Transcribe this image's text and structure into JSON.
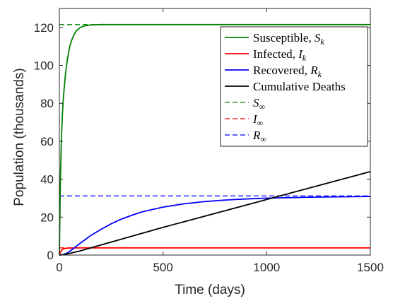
{
  "chart_data": {
    "type": "line",
    "xlabel": "Time (days)",
    "ylabel": "Population (thousands)",
    "xlim": [
      0,
      1500
    ],
    "ylim": [
      0,
      130
    ],
    "xticks": [
      0,
      500,
      1000,
      1500
    ],
    "yticks": [
      0,
      20,
      40,
      60,
      80,
      100,
      120
    ],
    "grid": false,
    "legend_position": "top-right",
    "series": [
      {
        "name": "Susceptible, S_k",
        "label_main": "Susceptible,",
        "label_math": "S",
        "label_sub": "k",
        "color": "#008000",
        "dash": false,
        "x": [
          0,
          5,
          10,
          15,
          20,
          30,
          40,
          50,
          60,
          70,
          80,
          100,
          120,
          150,
          200,
          300,
          500,
          1000,
          1500
        ],
        "y": [
          0,
          40,
          62,
          75,
          84,
          96,
          104,
          110,
          113.5,
          116,
          118,
          120,
          120.8,
          121.3,
          121.5,
          121.5,
          121.5,
          121.5,
          121.5
        ]
      },
      {
        "name": "Infected, I_k",
        "label_main": "Infected,",
        "label_math": "I",
        "label_sub": "k",
        "color": "#ff0000",
        "dash": false,
        "x": [
          0,
          5,
          10,
          20,
          40,
          100,
          500,
          1000,
          1500
        ],
        "y": [
          0,
          1.5,
          2.5,
          3.3,
          3.7,
          3.8,
          3.8,
          3.8,
          3.8
        ]
      },
      {
        "name": "Recovered, R_k",
        "label_main": "Recovered,",
        "label_math": "R",
        "label_sub": "k",
        "color": "#0000ff",
        "dash": false,
        "x": [
          0,
          20,
          40,
          60,
          80,
          100,
          150,
          200,
          250,
          300,
          350,
          400,
          500,
          600,
          700,
          800,
          900,
          1000,
          1200,
          1500
        ],
        "y": [
          0,
          0.3,
          1.2,
          2.8,
          4.5,
          6.2,
          10.2,
          13.5,
          16.5,
          19.0,
          21.0,
          22.8,
          25.3,
          27.0,
          28.2,
          29.0,
          29.6,
          30.0,
          30.5,
          30.9
        ]
      },
      {
        "name": "Cumulative Deaths",
        "label_main": "Cumulative Deaths",
        "label_math": "",
        "label_sub": "",
        "color": "#000000",
        "dash": false,
        "x": [
          0,
          20,
          50,
          100,
          200,
          500,
          1000,
          1500
        ],
        "y": [
          0,
          0.2,
          0.9,
          2.2,
          5.3,
          14.6,
          29.3,
          44.0
        ]
      },
      {
        "name": "S_∞",
        "label_main": "",
        "label_math": "S",
        "label_sub": "∞",
        "color": "#008000",
        "dash": true,
        "x": [
          0,
          1500
        ],
        "y": [
          121.5,
          121.5
        ]
      },
      {
        "name": "I_∞",
        "label_main": "",
        "label_math": "I",
        "label_sub": "∞",
        "color": "#ff0000",
        "dash": true,
        "x": [
          0,
          1500
        ],
        "y": [
          3.8,
          3.8
        ]
      },
      {
        "name": "R_∞",
        "label_main": "",
        "label_math": "R",
        "label_sub": "∞",
        "color": "#0000ff",
        "dash": true,
        "x": [
          0,
          1500
        ],
        "y": [
          31.2,
          31.2
        ]
      }
    ]
  }
}
